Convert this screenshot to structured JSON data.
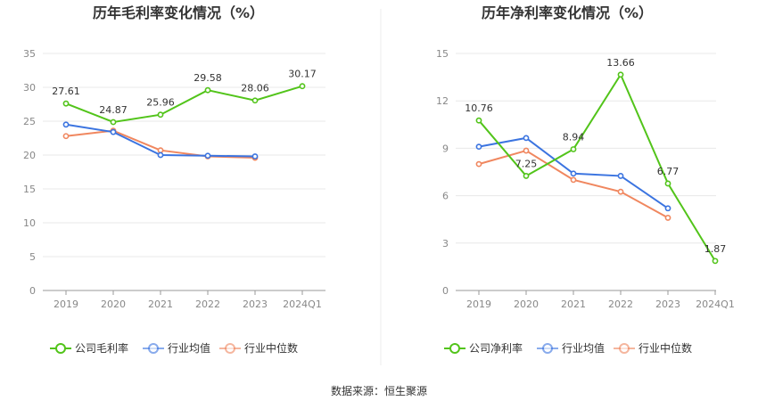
{
  "source": "数据来源：恒生聚源",
  "chart_data": [
    {
      "type": "line",
      "title": "历年毛利率变化情况（%）",
      "categories": [
        "2019",
        "2020",
        "2021",
        "2022",
        "2023",
        "2024Q1"
      ],
      "ylim": [
        0,
        35
      ],
      "yticks": [
        0,
        5,
        10,
        15,
        20,
        25,
        30,
        35
      ],
      "grid": true,
      "legend_position": "bottom",
      "series": [
        {
          "name": "公司毛利率",
          "color": "#52c41a",
          "values": [
            27.61,
            24.87,
            25.96,
            29.58,
            28.06,
            30.17
          ],
          "labels": [
            "27.61",
            "24.87",
            "25.96",
            "29.58",
            "28.06",
            "30.17"
          ]
        },
        {
          "name": "行业均值",
          "color": "#3b74e0",
          "values": [
            24.5,
            23.4,
            20.0,
            19.9,
            19.8,
            null
          ]
        },
        {
          "name": "行业中位数",
          "color": "#f0875f",
          "values": [
            22.8,
            23.6,
            20.7,
            19.8,
            19.6,
            null
          ]
        }
      ]
    },
    {
      "type": "line",
      "title": "历年净利率变化情况（%）",
      "categories": [
        "2019",
        "2020",
        "2021",
        "2022",
        "2023",
        "2024Q1"
      ],
      "ylim": [
        0,
        15
      ],
      "yticks": [
        0,
        3,
        6,
        9,
        12,
        15
      ],
      "grid": true,
      "legend_position": "bottom",
      "series": [
        {
          "name": "公司净利率",
          "color": "#52c41a",
          "values": [
            10.76,
            7.25,
            8.94,
            13.66,
            6.77,
            1.87
          ],
          "labels": [
            "10.76",
            "7.25",
            "8.94",
            "13.66",
            "6.77",
            "1.87"
          ]
        },
        {
          "name": "行业均值",
          "color": "#3b74e0",
          "values": [
            9.1,
            9.65,
            7.4,
            7.25,
            5.2,
            null
          ]
        },
        {
          "name": "行业中位数",
          "color": "#f0875f",
          "values": [
            8.0,
            8.85,
            7.0,
            6.25,
            4.6,
            null
          ]
        }
      ]
    }
  ]
}
